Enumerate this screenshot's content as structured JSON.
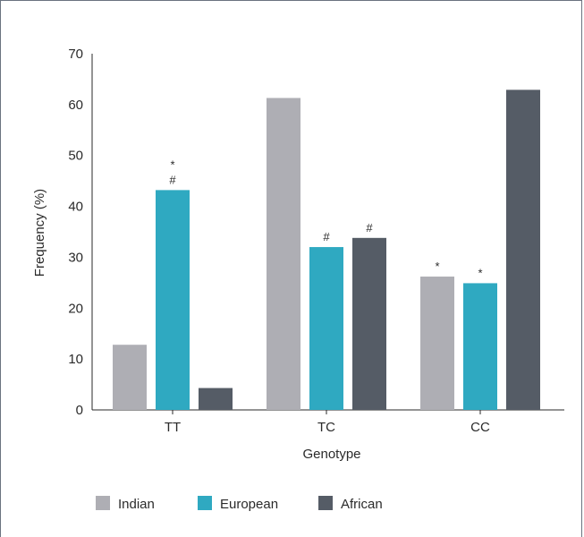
{
  "chart_data": {
    "type": "bar",
    "categories": [
      "TT",
      "TC",
      "CC"
    ],
    "series": [
      {
        "name": "Indian",
        "color": "#aeaeb4",
        "values": [
          12.8,
          61.3,
          26.2
        ],
        "annotations": [
          "",
          "",
          "*"
        ]
      },
      {
        "name": "European",
        "color": "#2fa9c1",
        "values": [
          43.2,
          32.0,
          24.9
        ],
        "annotations": [
          "*\n#",
          "#",
          "*"
        ]
      },
      {
        "name": "African",
        "color": "#555c66",
        "values": [
          4.3,
          33.8,
          62.9
        ],
        "annotations": [
          "",
          "#",
          ""
        ]
      }
    ],
    "xlabel": "Genotype",
    "ylabel": "Frequency (%)",
    "ylim": [
      0,
      70
    ],
    "yticks": [
      0,
      10,
      20,
      30,
      40,
      50,
      60,
      70
    ],
    "grid": false,
    "legend_position": "bottom"
  }
}
